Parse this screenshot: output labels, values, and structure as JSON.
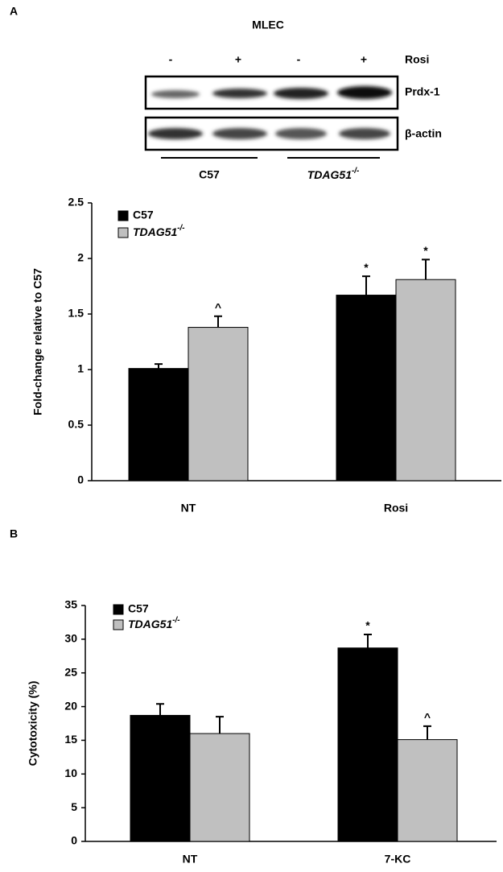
{
  "panel_labels": [
    "A",
    "B"
  ],
  "blot": {
    "title": "MLEC",
    "treatment": "Rosi",
    "lanes": [
      "-",
      "+",
      "-",
      "+"
    ],
    "bands": [
      "Prdx-1",
      "β-actin"
    ],
    "groups": [
      "C57",
      "TDAG51-/-"
    ]
  },
  "chart_data": [
    {
      "type": "bar",
      "y_label": "Fold-change relative to C57",
      "categories": [
        "NT",
        "Rosi"
      ],
      "series": [
        {
          "name": "C57",
          "color": "#000000",
          "values": [
            1.01,
            1.67
          ],
          "errors": [
            0.04,
            0.17
          ],
          "annotations": [
            null,
            "*"
          ]
        },
        {
          "name": "TDAG51-/-",
          "color": "#c0c0c0",
          "values": [
            1.38,
            1.81
          ],
          "errors": [
            0.1,
            0.18
          ],
          "annotations": [
            "^",
            "*"
          ]
        }
      ],
      "ylim": [
        0,
        2.5
      ],
      "yticks": [
        0,
        0.5,
        1,
        1.5,
        2,
        2.5
      ],
      "grid": false,
      "legend": "top-left"
    },
    {
      "type": "bar",
      "y_label": "Cytotoxicity (%)",
      "categories": [
        "NT",
        "7-KC"
      ],
      "series": [
        {
          "name": "C57",
          "color": "#000000",
          "values": [
            18.7,
            28.7
          ],
          "errors": [
            1.7,
            2.0
          ],
          "annotations": [
            null,
            "*"
          ]
        },
        {
          "name": "TDAG51-/-",
          "color": "#c0c0c0",
          "values": [
            16.0,
            15.1
          ],
          "errors": [
            2.5,
            2.0
          ],
          "annotations": [
            null,
            "^"
          ]
        }
      ],
      "ylim": [
        0,
        35
      ],
      "yticks": [
        0,
        5,
        10,
        15,
        20,
        25,
        30,
        35
      ],
      "grid": false,
      "legend": "top-left"
    }
  ]
}
